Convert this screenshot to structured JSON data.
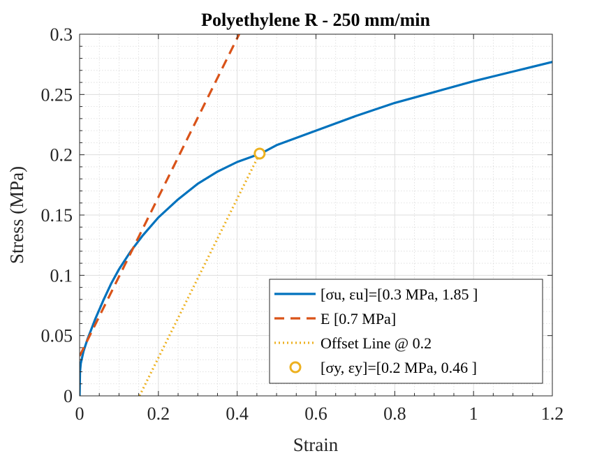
{
  "chart_data": {
    "type": "line",
    "title": "Polyethylene R - 250 mm/min",
    "xlabel": "Strain",
    "ylabel": "Stress (MPa)",
    "xlim": [
      0,
      1.2
    ],
    "ylim": [
      0,
      0.3
    ],
    "xticks": [
      0,
      0.2,
      0.4,
      0.6,
      0.8,
      1,
      1.2
    ],
    "yticks": [
      0,
      0.05,
      0.1,
      0.15,
      0.2,
      0.25,
      0.3
    ],
    "xtick_labels": [
      "0",
      "0.2",
      "0.4",
      "0.6",
      "0.8",
      "1",
      "1.2"
    ],
    "ytick_labels": [
      "0",
      "0.05",
      "0.1",
      "0.15",
      "0.2",
      "0.25",
      "0.3"
    ],
    "grid": true,
    "minor_grid": true,
    "legend_position": "bottom-right",
    "series": [
      {
        "name": "[σu, εu]=[0.3 MPa, 1.85 ]",
        "style": "solid",
        "color": "#0072BD",
        "x": [
          0,
          0.001,
          0.003,
          0.01,
          0.02,
          0.04,
          0.06,
          0.08,
          0.1,
          0.13,
          0.16,
          0.2,
          0.25,
          0.3,
          0.35,
          0.4,
          0.46,
          0.5,
          0.55,
          0.6,
          0.7,
          0.8,
          0.9,
          1.0,
          1.1,
          1.2
        ],
        "y": [
          0,
          0.02,
          0.027,
          0.037,
          0.047,
          0.064,
          0.079,
          0.093,
          0.105,
          0.12,
          0.133,
          0.148,
          0.163,
          0.176,
          0.186,
          0.194,
          0.201,
          0.208,
          0.214,
          0.22,
          0.232,
          0.243,
          0.252,
          0.261,
          0.269,
          0.277
        ]
      },
      {
        "name": "E [0.7 MPa]",
        "style": "dashed",
        "color": "#D95319",
        "x": [
          0,
          0.405
        ],
        "y": [
          0.033,
          0.3
        ]
      },
      {
        "name": "Offset Line @ 0.2",
        "style": "dotted",
        "color": "#EDB120",
        "x": [
          0.152,
          0.457
        ],
        "y": [
          0,
          0.201
        ]
      },
      {
        "name": "[σy, εy]=[0.2 MPa, 0.46 ]",
        "style": "marker",
        "color": "#EDB120",
        "x": [
          0.457
        ],
        "y": [
          0.201
        ]
      }
    ]
  }
}
